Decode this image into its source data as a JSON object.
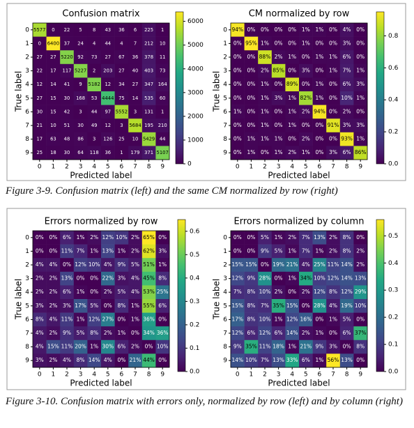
{
  "chart_data": [
    {
      "type": "heatmap",
      "title": "Confusion matrix",
      "xlabel": "Predicted label",
      "ylabel": "True label",
      "colormap": "viridis",
      "categories": [
        "0",
        "1",
        "2",
        "3",
        "4",
        "5",
        "6",
        "7",
        "8",
        "9"
      ],
      "values": [
        [
          5577,
          0,
          22,
          5,
          8,
          43,
          36,
          6,
          225,
          1
        ],
        [
          0,
          6400,
          37,
          24,
          4,
          44,
          4,
          7,
          212,
          10
        ],
        [
          27,
          27,
          5220,
          92,
          73,
          27,
          67,
          36,
          378,
          11
        ],
        [
          22,
          17,
          117,
          5227,
          2,
          203,
          27,
          40,
          403,
          73
        ],
        [
          12,
          14,
          41,
          9,
          5182,
          12,
          34,
          27,
          347,
          164
        ],
        [
          27,
          15,
          30,
          168,
          53,
          4444,
          75,
          14,
          535,
          60
        ],
        [
          30,
          15,
          42,
          3,
          44,
          97,
          5552,
          3,
          131,
          1
        ],
        [
          21,
          10,
          51,
          30,
          49,
          12,
          3,
          5684,
          195,
          210
        ],
        [
          17,
          63,
          48,
          86,
          3,
          126,
          25,
          10,
          5429,
          44
        ],
        [
          25,
          18,
          30,
          64,
          118,
          36,
          1,
          179,
          371,
          5107
        ]
      ],
      "clim": [
        0,
        6400
      ],
      "cticks": [
        0,
        1000,
        2000,
        3000,
        4000,
        5000,
        6000
      ]
    },
    {
      "type": "heatmap",
      "title": "CM normalized by row",
      "xlabel": "Predicted label",
      "ylabel": "True label",
      "colormap": "viridis",
      "categories": [
        "0",
        "1",
        "2",
        "3",
        "4",
        "5",
        "6",
        "7",
        "8",
        "9"
      ],
      "values": [
        [
          0.94,
          0,
          0,
          0,
          0,
          0.01,
          0.01,
          0,
          0.04,
          0
        ],
        [
          0,
          0.95,
          0.01,
          0,
          0,
          0.01,
          0,
          0,
          0.03,
          0
        ],
        [
          0,
          0,
          0.88,
          0.02,
          0.01,
          0,
          0.01,
          0.01,
          0.06,
          0
        ],
        [
          0,
          0,
          0.02,
          0.85,
          0,
          0.03,
          0,
          0.01,
          0.07,
          0.01
        ],
        [
          0,
          0,
          0.01,
          0,
          0.89,
          0,
          0.01,
          0,
          0.06,
          0.03
        ],
        [
          0,
          0,
          0.01,
          0.03,
          0.01,
          0.82,
          0.01,
          0,
          0.1,
          0.01
        ],
        [
          0.01,
          0,
          0.01,
          0,
          0.01,
          0.02,
          0.94,
          0,
          0.02,
          0
        ],
        [
          0,
          0,
          0.01,
          0,
          0.01,
          0,
          0,
          0.91,
          0.03,
          0.03
        ],
        [
          0,
          0.01,
          0.01,
          0.01,
          0,
          0.02,
          0,
          0,
          0.93,
          0.01
        ],
        [
          0,
          0.01,
          0,
          0.01,
          0.02,
          0.01,
          0,
          0.03,
          0.06,
          0.86
        ]
      ],
      "value_labels": [
        [
          "94%",
          "0%",
          "0%",
          "0%",
          "0%",
          "1%",
          "1%",
          "0%",
          "4%",
          "0%"
        ],
        [
          "0%",
          "95%",
          "1%",
          "0%",
          "0%",
          "1%",
          "0%",
          "0%",
          "3%",
          "0%"
        ],
        [
          "0%",
          "0%",
          "88%",
          "2%",
          "1%",
          "0%",
          "1%",
          "1%",
          "6%",
          "0%"
        ],
        [
          "0%",
          "0%",
          "2%",
          "85%",
          "0%",
          "3%",
          "0%",
          "1%",
          "7%",
          "1%"
        ],
        [
          "0%",
          "0%",
          "1%",
          "0%",
          "89%",
          "0%",
          "1%",
          "0%",
          "6%",
          "3%"
        ],
        [
          "0%",
          "0%",
          "1%",
          "3%",
          "1%",
          "82%",
          "1%",
          "0%",
          "10%",
          "1%"
        ],
        [
          "1%",
          "0%",
          "1%",
          "0%",
          "1%",
          "2%",
          "94%",
          "0%",
          "2%",
          "0%"
        ],
        [
          "0%",
          "0%",
          "1%",
          "0%",
          "1%",
          "0%",
          "0%",
          "91%",
          "3%",
          "3%"
        ],
        [
          "0%",
          "1%",
          "1%",
          "1%",
          "0%",
          "2%",
          "0%",
          "0%",
          "93%",
          "1%"
        ],
        [
          "0%",
          "1%",
          "0%",
          "1%",
          "2%",
          "1%",
          "0%",
          "3%",
          "6%",
          "86%"
        ]
      ],
      "clim": [
        0,
        0.95
      ],
      "cticks": [
        {
          "value": 0,
          "label": "0.0"
        },
        0.2,
        0.4,
        0.6,
        0.8
      ]
    },
    {
      "type": "heatmap",
      "title": "Errors normalized by row",
      "xlabel": "Predicted label",
      "ylabel": "True label",
      "colormap": "viridis",
      "categories": [
        "0",
        "1",
        "2",
        "3",
        "4",
        "5",
        "6",
        "7",
        "8",
        "9"
      ],
      "values": [
        [
          0,
          0,
          0.06,
          0.01,
          0.02,
          0.12,
          0.1,
          0.02,
          0.65,
          0
        ],
        [
          0,
          0,
          0.11,
          0.07,
          0.01,
          0.13,
          0.01,
          0.02,
          0.62,
          0.03
        ],
        [
          0.04,
          0.04,
          0,
          0.12,
          0.1,
          0.04,
          0.09,
          0.05,
          0.51,
          0.01
        ],
        [
          0.02,
          0.02,
          0.13,
          0,
          0,
          0.22,
          0.03,
          0.04,
          0.45,
          0.08
        ],
        [
          0.02,
          0.02,
          0.06,
          0.01,
          0,
          0.02,
          0.05,
          0.04,
          0.53,
          0.25
        ],
        [
          0.03,
          0.02,
          0.03,
          0.17,
          0.05,
          0,
          0.08,
          0.01,
          0.55,
          0.06
        ],
        [
          0.08,
          0.04,
          0.11,
          0.01,
          0.12,
          0.27,
          0,
          0.01,
          0.36,
          0
        ],
        [
          0.04,
          0.02,
          0.09,
          0.05,
          0.08,
          0.02,
          0.01,
          0,
          0.34,
          0.36
        ],
        [
          0.04,
          0.15,
          0.11,
          0.2,
          0.01,
          0.3,
          0.06,
          0.02,
          0,
          0.1
        ],
        [
          0.03,
          0.02,
          0.04,
          0.08,
          0.14,
          0.04,
          0,
          0.21,
          0.44,
          0
        ]
      ],
      "value_labels": [
        [
          "0%",
          "0%",
          "6%",
          "1%",
          "2%",
          "12%",
          "10%",
          "2%",
          "65%",
          "0%"
        ],
        [
          "0%",
          "0%",
          "11%",
          "7%",
          "1%",
          "13%",
          "1%",
          "2%",
          "62%",
          "3%"
        ],
        [
          "4%",
          "4%",
          "0%",
          "12%",
          "10%",
          "4%",
          "9%",
          "5%",
          "51%",
          "1%"
        ],
        [
          "2%",
          "2%",
          "13%",
          "0%",
          "0%",
          "22%",
          "3%",
          "4%",
          "45%",
          "8%"
        ],
        [
          "2%",
          "2%",
          "6%",
          "1%",
          "0%",
          "2%",
          "5%",
          "4%",
          "53%",
          "25%"
        ],
        [
          "3%",
          "2%",
          "3%",
          "17%",
          "5%",
          "0%",
          "8%",
          "1%",
          "55%",
          "6%"
        ],
        [
          "8%",
          "4%",
          "11%",
          "1%",
          "12%",
          "27%",
          "0%",
          "1%",
          "36%",
          "0%"
        ],
        [
          "4%",
          "2%",
          "9%",
          "5%",
          "8%",
          "2%",
          "1%",
          "0%",
          "34%",
          "36%"
        ],
        [
          "4%",
          "15%",
          "11%",
          "20%",
          "1%",
          "30%",
          "6%",
          "2%",
          "0%",
          "10%"
        ],
        [
          "3%",
          "2%",
          "4%",
          "8%",
          "14%",
          "4%",
          "0%",
          "21%",
          "44%",
          "0%"
        ]
      ],
      "clim": [
        0,
        0.65
      ],
      "cticks": [
        {
          "value": 0,
          "label": "0.0"
        },
        0.1,
        0.2,
        0.3,
        0.4,
        0.5,
        0.6
      ]
    },
    {
      "type": "heatmap",
      "title": "Errors normalized by column",
      "xlabel": "Predicted label",
      "ylabel": "True label",
      "colormap": "viridis",
      "categories": [
        "0",
        "1",
        "2",
        "3",
        "4",
        "5",
        "6",
        "7",
        "8",
        "9"
      ],
      "values": [
        [
          0,
          0,
          0.05,
          0.01,
          0.02,
          0.07,
          0.13,
          0.02,
          0.08,
          0
        ],
        [
          0,
          0,
          0.09,
          0.05,
          0.01,
          0.07,
          0.01,
          0.02,
          0.08,
          0.02
        ],
        [
          0.15,
          0.15,
          0,
          0.19,
          0.21,
          0.04,
          0.25,
          0.11,
          0.14,
          0.02
        ],
        [
          0.12,
          0.09,
          0.28,
          0,
          0.01,
          0.34,
          0.1,
          0.12,
          0.14,
          0.13
        ],
        [
          0.07,
          0.08,
          0.1,
          0.02,
          0,
          0.02,
          0.12,
          0.08,
          0.12,
          0.29
        ],
        [
          0.15,
          0.08,
          0.07,
          0.35,
          0.15,
          0,
          0.28,
          0.04,
          0.19,
          0.1
        ],
        [
          0.17,
          0.08,
          0.1,
          0.01,
          0.12,
          0.16,
          0,
          0.01,
          0.05,
          0
        ],
        [
          0.12,
          0.06,
          0.12,
          0.06,
          0.14,
          0.02,
          0.01,
          0,
          0.06,
          0.37
        ],
        [
          0.09,
          0.35,
          0.11,
          0.18,
          0.01,
          0.21,
          0.09,
          0.03,
          0,
          0.08
        ],
        [
          0.14,
          0.1,
          0.07,
          0.13,
          0.33,
          0.06,
          0.01,
          0.56,
          0.13,
          0
        ]
      ],
      "value_labels": [
        [
          "0%",
          "0%",
          "5%",
          "1%",
          "2%",
          "7%",
          "13%",
          "2%",
          "8%",
          "0%"
        ],
        [
          "0%",
          "0%",
          "9%",
          "5%",
          "1%",
          "7%",
          "1%",
          "2%",
          "8%",
          "2%"
        ],
        [
          "15%",
          "15%",
          "0%",
          "19%",
          "21%",
          "4%",
          "25%",
          "11%",
          "14%",
          "2%"
        ],
        [
          "12%",
          "9%",
          "28%",
          "0%",
          "1%",
          "34%",
          "10%",
          "12%",
          "14%",
          "13%"
        ],
        [
          "7%",
          "8%",
          "10%",
          "2%",
          "0%",
          "2%",
          "12%",
          "8%",
          "12%",
          "29%"
        ],
        [
          "15%",
          "8%",
          "7%",
          "35%",
          "15%",
          "0%",
          "28%",
          "4%",
          "19%",
          "10%"
        ],
        [
          "17%",
          "8%",
          "10%",
          "1%",
          "12%",
          "16%",
          "0%",
          "1%",
          "5%",
          "0%"
        ],
        [
          "12%",
          "6%",
          "12%",
          "6%",
          "14%",
          "2%",
          "1%",
          "0%",
          "6%",
          "37%"
        ],
        [
          "9%",
          "35%",
          "11%",
          "18%",
          "1%",
          "21%",
          "9%",
          "3%",
          "0%",
          "8%"
        ],
        [
          "14%",
          "10%",
          "7%",
          "13%",
          "33%",
          "6%",
          "1%",
          "56%",
          "13%",
          "0%"
        ]
      ],
      "clim": [
        0,
        0.56
      ],
      "cticks": [
        {
          "value": 0,
          "label": "0.0"
        },
        0.1,
        0.2,
        0.3,
        0.4,
        0.5
      ]
    }
  ],
  "captions": [
    "Figure 3-9. Confusion matrix (left) and the same CM normalized by row (right)",
    "Figure 3-10. Confusion matrix with errors only, normalized by row (left) and by column (right)"
  ]
}
